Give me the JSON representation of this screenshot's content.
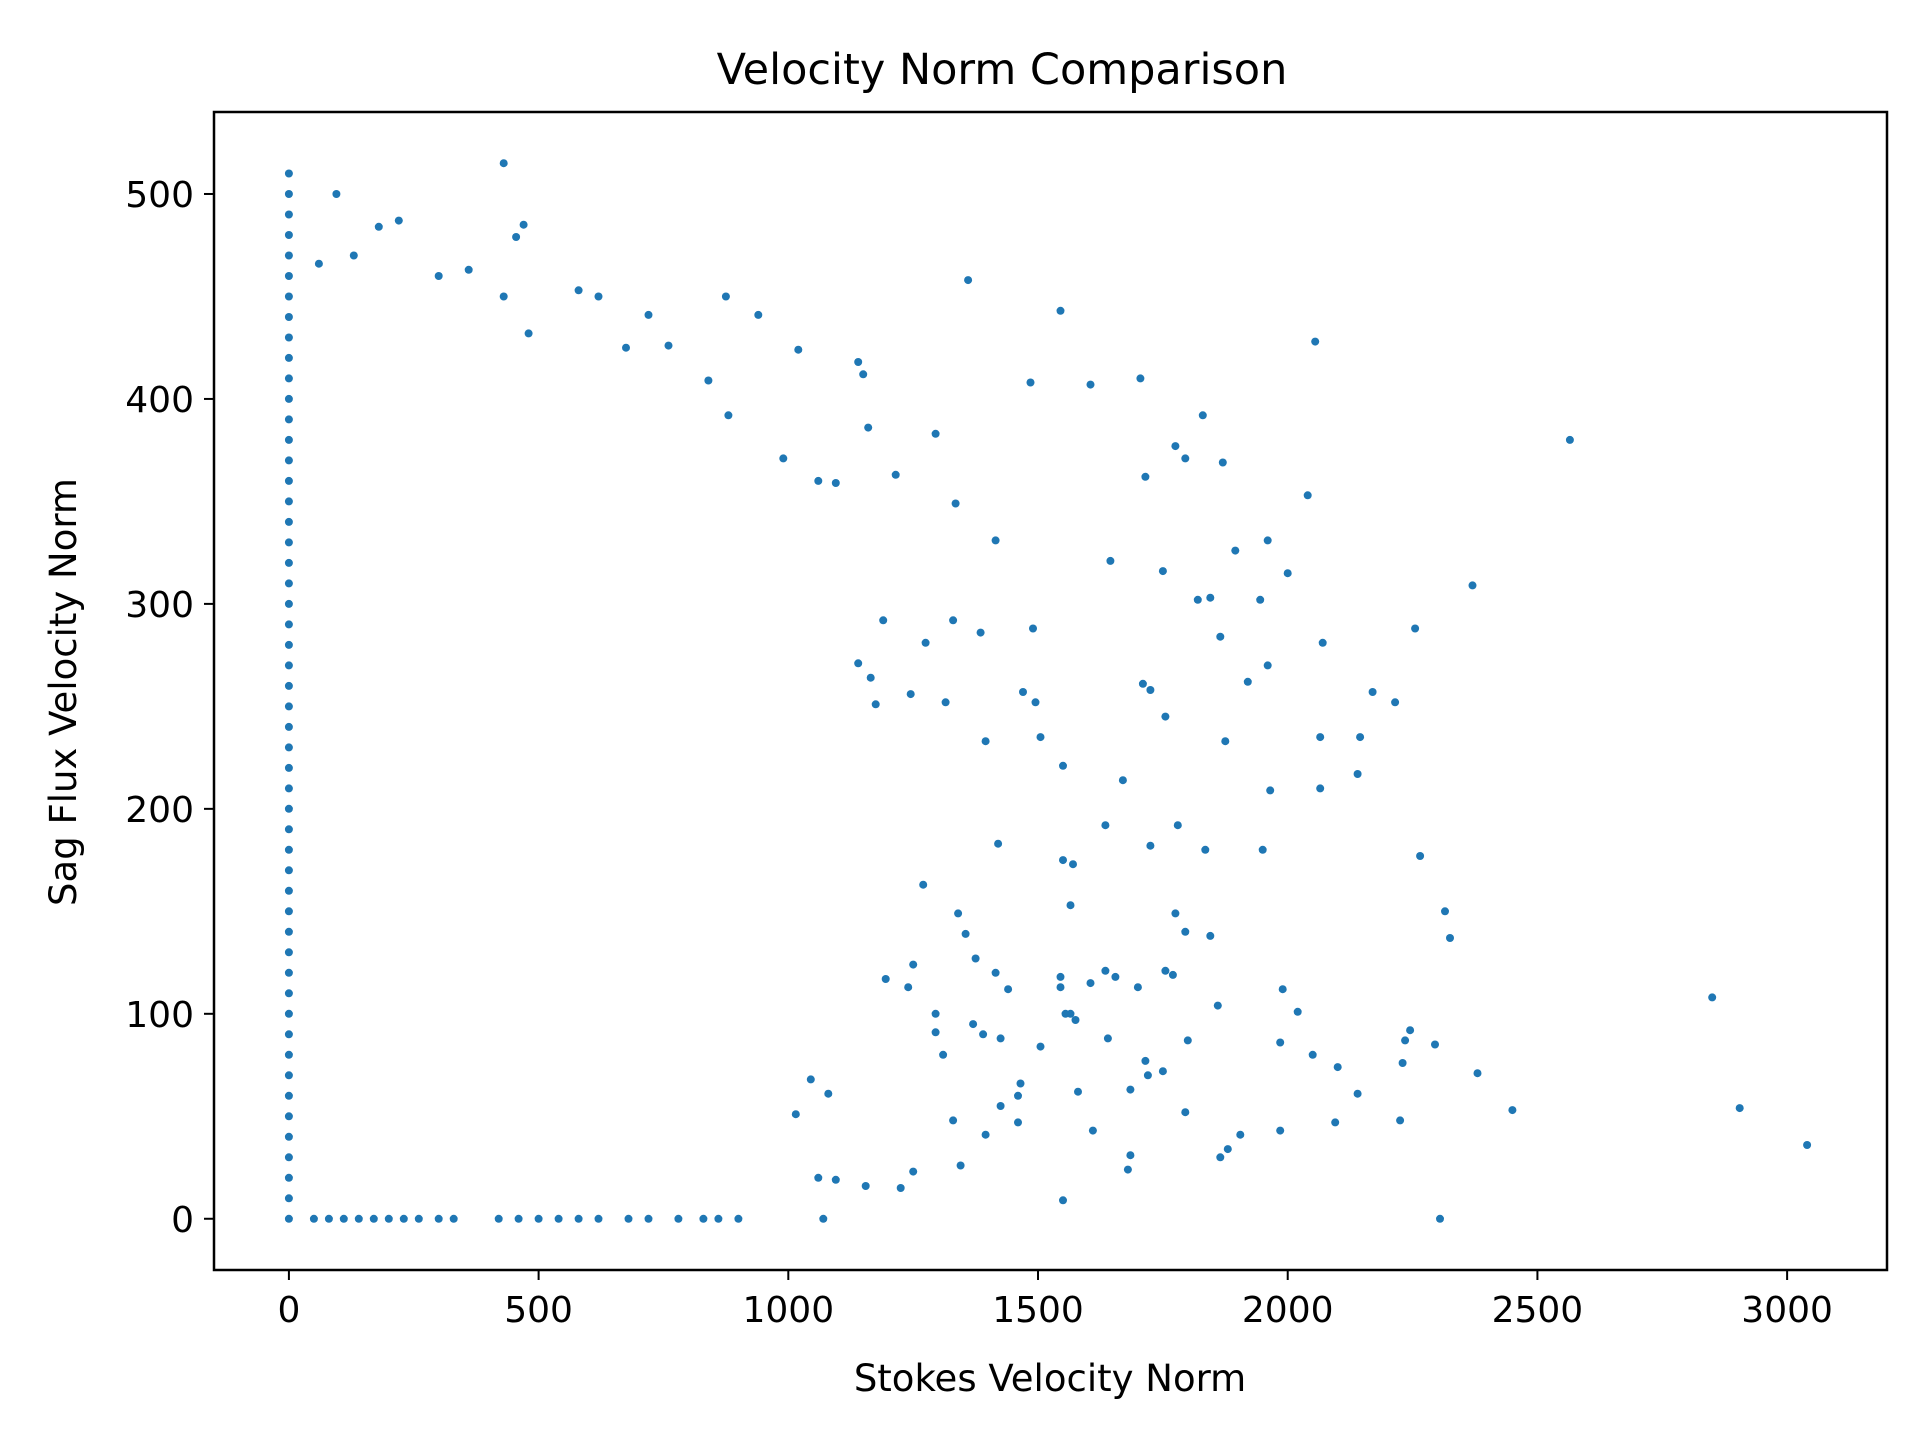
{
  "chart_data": {
    "type": "scatter",
    "title": "Velocity Norm Comparison",
    "xlabel": "Stokes Velocity Norm",
    "ylabel": "Sag Flux Velocity Norm",
    "xlim": [
      -150,
      3200
    ],
    "ylim": [
      -25,
      540
    ],
    "xticks": [
      0,
      500,
      1000,
      1500,
      2000,
      2500,
      3000
    ],
    "yticks": [
      0,
      100,
      200,
      300,
      400,
      500
    ],
    "xtick_labels": [
      "0",
      "500",
      "1000",
      "1500",
      "2000",
      "2500",
      "3000"
    ],
    "ytick_labels": [
      "0",
      "100",
      "200",
      "300",
      "400",
      "500"
    ],
    "grid": false,
    "legend": false,
    "marker_color": "#1f77b4",
    "series": [
      {
        "values_note": "representative sample of the dense point cloud",
        "points": [
          [
            0,
            510
          ],
          [
            0,
            500
          ],
          [
            0,
            490
          ],
          [
            0,
            480
          ],
          [
            0,
            470
          ],
          [
            0,
            460
          ],
          [
            0,
            450
          ],
          [
            0,
            440
          ],
          [
            0,
            430
          ],
          [
            0,
            420
          ],
          [
            0,
            410
          ],
          [
            0,
            400
          ],
          [
            0,
            390
          ],
          [
            0,
            380
          ],
          [
            0,
            370
          ],
          [
            0,
            360
          ],
          [
            0,
            350
          ],
          [
            0,
            340
          ],
          [
            0,
            330
          ],
          [
            0,
            320
          ],
          [
            0,
            310
          ],
          [
            0,
            300
          ],
          [
            0,
            290
          ],
          [
            0,
            280
          ],
          [
            0,
            270
          ],
          [
            0,
            260
          ],
          [
            0,
            250
          ],
          [
            0,
            240
          ],
          [
            0,
            230
          ],
          [
            0,
            220
          ],
          [
            0,
            210
          ],
          [
            0,
            200
          ],
          [
            0,
            190
          ],
          [
            0,
            180
          ],
          [
            0,
            170
          ],
          [
            0,
            160
          ],
          [
            0,
            150
          ],
          [
            0,
            140
          ],
          [
            0,
            130
          ],
          [
            0,
            120
          ],
          [
            0,
            110
          ],
          [
            0,
            100
          ],
          [
            0,
            90
          ],
          [
            0,
            80
          ],
          [
            0,
            70
          ],
          [
            0,
            60
          ],
          [
            0,
            50
          ],
          [
            0,
            40
          ],
          [
            0,
            30
          ],
          [
            0,
            20
          ],
          [
            0,
            10
          ],
          [
            0,
            0
          ],
          [
            430,
            515
          ],
          [
            95,
            500
          ],
          [
            220,
            487
          ],
          [
            470,
            485
          ],
          [
            180,
            484
          ],
          [
            455,
            479
          ],
          [
            60,
            466
          ],
          [
            130,
            470
          ],
          [
            300,
            460
          ],
          [
            360,
            463
          ],
          [
            580,
            453
          ],
          [
            620,
            450
          ],
          [
            430,
            450
          ],
          [
            875,
            450
          ],
          [
            1360,
            458
          ],
          [
            1545,
            443
          ],
          [
            940,
            441
          ],
          [
            720,
            441
          ],
          [
            1020,
            424
          ],
          [
            2055,
            428
          ],
          [
            760,
            426
          ],
          [
            675,
            425
          ],
          [
            480,
            432
          ],
          [
            840,
            409
          ],
          [
            1150,
            412
          ],
          [
            1485,
            408
          ],
          [
            1605,
            407
          ],
          [
            1705,
            410
          ],
          [
            1140,
            418
          ],
          [
            2565,
            380
          ],
          [
            1830,
            392
          ],
          [
            1295,
            383
          ],
          [
            1160,
            386
          ],
          [
            1775,
            377
          ],
          [
            1715,
            362
          ],
          [
            1795,
            371
          ],
          [
            1870,
            369
          ],
          [
            880,
            392
          ],
          [
            990,
            371
          ],
          [
            1060,
            360
          ],
          [
            1095,
            359
          ],
          [
            1215,
            363
          ],
          [
            1335,
            349
          ],
          [
            1415,
            331
          ],
          [
            2040,
            353
          ],
          [
            1960,
            331
          ],
          [
            1895,
            326
          ],
          [
            1645,
            321
          ],
          [
            1750,
            316
          ],
          [
            2000,
            315
          ],
          [
            2370,
            309
          ],
          [
            1820,
            302
          ],
          [
            1845,
            303
          ],
          [
            1945,
            302
          ],
          [
            1865,
            284
          ],
          [
            2070,
            281
          ],
          [
            2255,
            288
          ],
          [
            1490,
            288
          ],
          [
            1385,
            286
          ],
          [
            1275,
            281
          ],
          [
            1330,
            292
          ],
          [
            1190,
            292
          ],
          [
            1140,
            271
          ],
          [
            1165,
            264
          ],
          [
            1470,
            257
          ],
          [
            1710,
            261
          ],
          [
            1725,
            258
          ],
          [
            1755,
            245
          ],
          [
            2170,
            257
          ],
          [
            2215,
            252
          ],
          [
            1920,
            262
          ],
          [
            1960,
            270
          ],
          [
            1495,
            252
          ],
          [
            1505,
            235
          ],
          [
            1395,
            233
          ],
          [
            2065,
            235
          ],
          [
            2145,
            235
          ],
          [
            1875,
            233
          ],
          [
            1315,
            252
          ],
          [
            1175,
            251
          ],
          [
            1245,
            256
          ],
          [
            2140,
            217
          ],
          [
            1550,
            221
          ],
          [
            1670,
            214
          ],
          [
            1965,
            209
          ],
          [
            2065,
            210
          ],
          [
            1570,
            173
          ],
          [
            1550,
            175
          ],
          [
            1635,
            192
          ],
          [
            1780,
            192
          ],
          [
            1835,
            180
          ],
          [
            1950,
            180
          ],
          [
            2265,
            177
          ],
          [
            1725,
            182
          ],
          [
            1270,
            163
          ],
          [
            1420,
            183
          ],
          [
            1565,
            153
          ],
          [
            1775,
            149
          ],
          [
            1795,
            140
          ],
          [
            1845,
            138
          ],
          [
            2315,
            150
          ],
          [
            2325,
            137
          ],
          [
            1355,
            139
          ],
          [
            1375,
            127
          ],
          [
            1440,
            112
          ],
          [
            1415,
            120
          ],
          [
            1340,
            149
          ],
          [
            1545,
            118
          ],
          [
            1545,
            113
          ],
          [
            1565,
            100
          ],
          [
            1605,
            115
          ],
          [
            1635,
            121
          ],
          [
            1655,
            118
          ],
          [
            1700,
            113
          ],
          [
            1755,
            121
          ],
          [
            1770,
            119
          ],
          [
            2850,
            108
          ],
          [
            1990,
            112
          ],
          [
            2020,
            101
          ],
          [
            1860,
            104
          ],
          [
            1195,
            117
          ],
          [
            1250,
            124
          ],
          [
            1240,
            113
          ],
          [
            1295,
            100
          ],
          [
            1295,
            91
          ],
          [
            1310,
            80
          ],
          [
            1370,
            95
          ],
          [
            1390,
            90
          ],
          [
            1425,
            88
          ],
          [
            1505,
            84
          ],
          [
            1555,
            100
          ],
          [
            1575,
            97
          ],
          [
            1640,
            88
          ],
          [
            1800,
            87
          ],
          [
            1985,
            86
          ],
          [
            2050,
            80
          ],
          [
            2100,
            74
          ],
          [
            2235,
            87
          ],
          [
            2230,
            76
          ],
          [
            2245,
            92
          ],
          [
            2295,
            85
          ],
          [
            1715,
            77
          ],
          [
            1720,
            70
          ],
          [
            1750,
            72
          ],
          [
            1465,
            66
          ],
          [
            1460,
            60
          ],
          [
            1580,
            62
          ],
          [
            1685,
            63
          ],
          [
            2140,
            61
          ],
          [
            2380,
            71
          ],
          [
            2450,
            53
          ],
          [
            2905,
            54
          ],
          [
            3040,
            36
          ],
          [
            1880,
            34
          ],
          [
            1865,
            30
          ],
          [
            1685,
            31
          ],
          [
            1680,
            24
          ],
          [
            1610,
            43
          ],
          [
            1550,
            9
          ],
          [
            1460,
            47
          ],
          [
            1425,
            55
          ],
          [
            1395,
            41
          ],
          [
            1345,
            26
          ],
          [
            1330,
            48
          ],
          [
            1250,
            23
          ],
          [
            1225,
            15
          ],
          [
            1155,
            16
          ],
          [
            1095,
            19
          ],
          [
            1080,
            61
          ],
          [
            1045,
            68
          ],
          [
            1060,
            20
          ],
          [
            1015,
            51
          ],
          [
            2305,
            0
          ],
          [
            2225,
            48
          ],
          [
            2095,
            47
          ],
          [
            1985,
            43
          ],
          [
            1905,
            41
          ],
          [
            1795,
            52
          ],
          [
            1070,
            0
          ],
          [
            900,
            0
          ],
          [
            860,
            0
          ],
          [
            830,
            0
          ],
          [
            780,
            0
          ],
          [
            720,
            0
          ],
          [
            680,
            0
          ],
          [
            620,
            0
          ],
          [
            580,
            0
          ],
          [
            540,
            0
          ],
          [
            500,
            0
          ],
          [
            460,
            0
          ],
          [
            420,
            0
          ],
          [
            330,
            0
          ],
          [
            300,
            0
          ],
          [
            260,
            0
          ],
          [
            230,
            0
          ],
          [
            200,
            0
          ],
          [
            170,
            0
          ],
          [
            140,
            0
          ],
          [
            110,
            0
          ],
          [
            80,
            0
          ],
          [
            50,
            0
          ]
        ]
      }
    ]
  }
}
